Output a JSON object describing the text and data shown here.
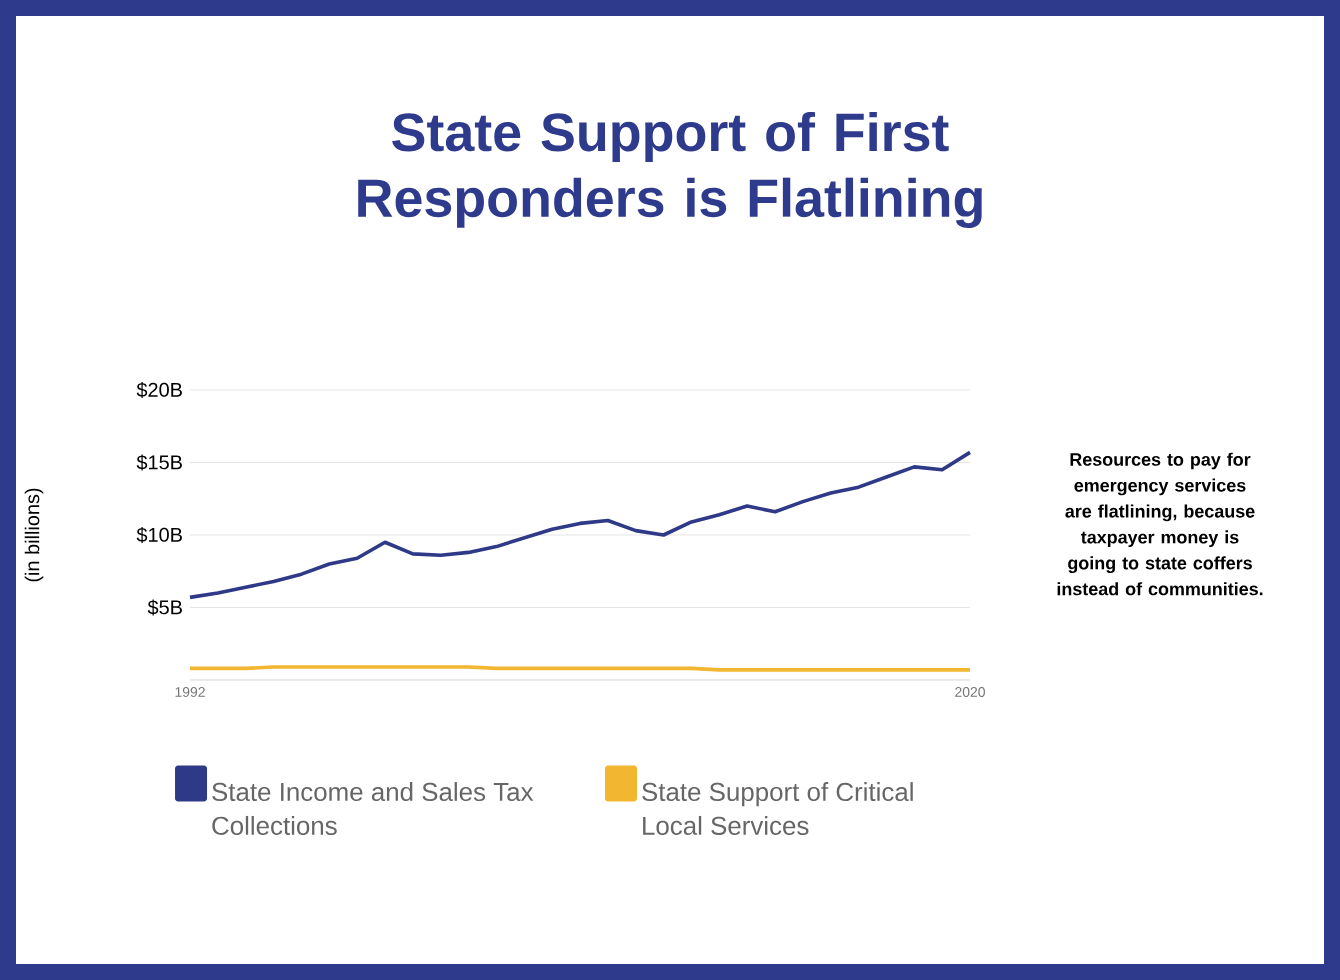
{
  "chart_data": {
    "type": "line",
    "title": "State Support of First Responders is Flatlining",
    "ylabel": "(in billions)",
    "annotations": [
      "Resources to pay for emergency services are flatlining, because taxpayer money is going to state coffers instead of communities."
    ],
    "x": [
      1992,
      1993,
      1994,
      1995,
      1996,
      1997,
      1998,
      1999,
      2000,
      2001,
      2002,
      2003,
      2004,
      2005,
      2006,
      2007,
      2008,
      2009,
      2010,
      2011,
      2012,
      2013,
      2014,
      2015,
      2016,
      2017,
      2018,
      2019,
      2020
    ],
    "series": [
      {
        "name": "State Income and Sales Tax Collections",
        "color": "#2e3a87",
        "values": [
          5.7,
          6.0,
          6.4,
          6.8,
          7.3,
          8.0,
          8.4,
          9.5,
          8.7,
          8.6,
          8.8,
          9.2,
          9.8,
          10.4,
          10.8,
          11.0,
          10.3,
          10.0,
          10.9,
          11.4,
          12.0,
          11.6,
          12.3,
          12.9,
          13.3,
          14.0,
          14.7,
          14.5,
          15.7
        ]
      },
      {
        "name": "State Support of Critical Local Services",
        "color": "#f2b630",
        "values": [
          0.8,
          0.8,
          0.8,
          0.9,
          0.9,
          0.9,
          0.9,
          0.9,
          0.9,
          0.9,
          0.9,
          0.8,
          0.8,
          0.8,
          0.8,
          0.8,
          0.8,
          0.8,
          0.8,
          0.7,
          0.7,
          0.7,
          0.7,
          0.7,
          0.7,
          0.7,
          0.7,
          0.7,
          0.7
        ]
      }
    ],
    "xlim": [
      1992,
      2020
    ],
    "xticks": [
      1992,
      2020
    ],
    "ylim": [
      0,
      20
    ],
    "yticks": [
      {
        "value": 5,
        "label": "$5B"
      },
      {
        "value": 10,
        "label": "$10B"
      },
      {
        "value": 15,
        "label": "$15B"
      },
      {
        "value": 20,
        "label": "$20B"
      }
    ],
    "grid": "y",
    "legend": "bottom",
    "marker": "none",
    "line_style": "solid"
  }
}
